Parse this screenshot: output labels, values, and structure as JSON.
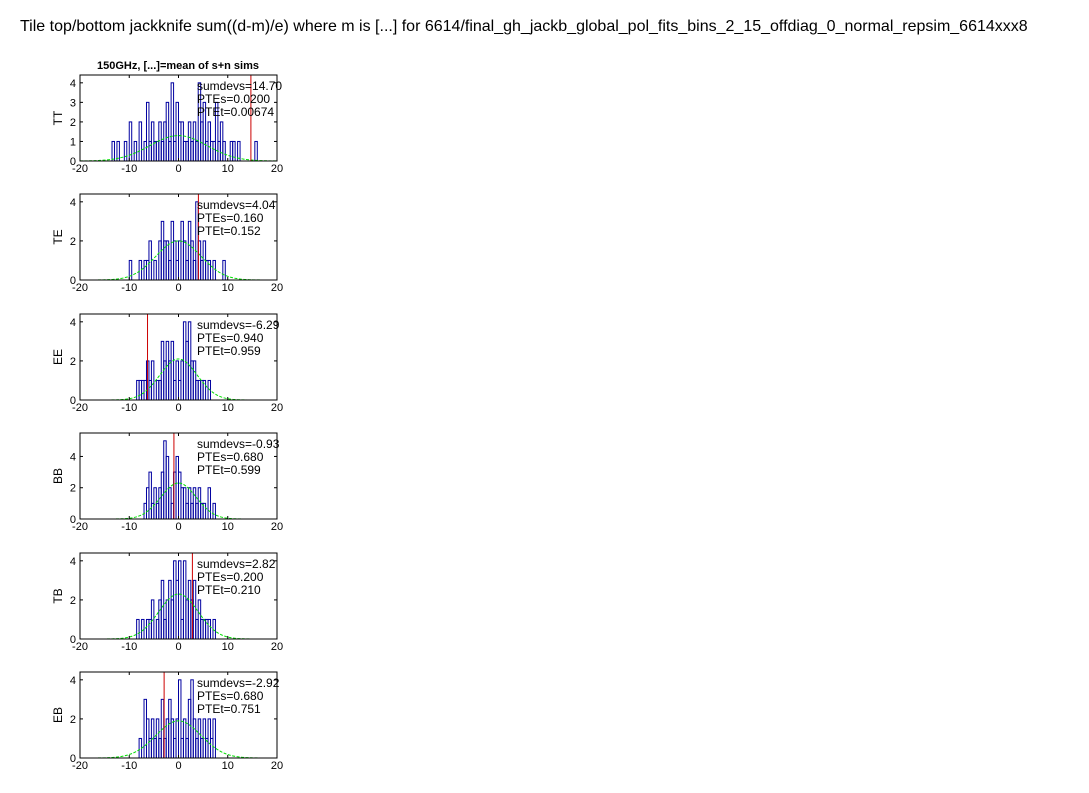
{
  "title": "Tile top/bottom jackknife sum((d-m)/e) where m is [...] for 6614/final_gh_jackb_global_pol_fits_bins_2_15_offdiag_0_normal_repsim_6614xxx8",
  "panel_title": "150GHz, [...]=mean of s+n sims",
  "colors": {
    "hist": "#0000a0",
    "data_line": "#cc0000",
    "gauss": "#00dd00",
    "axes": "#000000"
  },
  "chart_data": [
    {
      "type": "histogram",
      "spectrum": "TT",
      "xlim": [
        -20,
        20
      ],
      "ylim": [
        0,
        4.4
      ],
      "xticks": [
        -20,
        -10,
        0,
        10,
        20
      ],
      "yticks": [
        0,
        1,
        2,
        3,
        4
      ],
      "xticklabels": [
        "-20",
        "-10",
        "0",
        "10",
        "20"
      ],
      "yticklabels": [
        "0",
        "1",
        "2",
        "3",
        "4"
      ],
      "ylabel": "TT",
      "sumdevs": 14.7,
      "data_value": 14.7,
      "stats": [
        "sumdevs=14.70",
        "PTEs=0.0200",
        "PTEt=0.00674"
      ],
      "gauss_sigma": 5.8,
      "gauss_peak": 1.3,
      "bin_width": 0.5,
      "bins": [
        [
          -13.5,
          1
        ],
        [
          -12.5,
          1
        ],
        [
          -11,
          1
        ],
        [
          -10,
          2
        ],
        [
          -9,
          1
        ],
        [
          -8,
          2
        ],
        [
          -7,
          1
        ],
        [
          -6.5,
          3
        ],
        [
          -6,
          1
        ],
        [
          -5.5,
          2
        ],
        [
          -5,
          1
        ],
        [
          -4.5,
          1
        ],
        [
          -4,
          2
        ],
        [
          -3.5,
          1
        ],
        [
          -3,
          2
        ],
        [
          -2.5,
          3
        ],
        [
          -2,
          1
        ],
        [
          -1.5,
          4
        ],
        [
          -1,
          1
        ],
        [
          -0.5,
          3
        ],
        [
          0,
          2
        ],
        [
          0.5,
          2
        ],
        [
          1,
          1
        ],
        [
          1.5,
          1
        ],
        [
          2,
          2
        ],
        [
          2.5,
          1
        ],
        [
          3,
          2
        ],
        [
          3.5,
          1
        ],
        [
          4,
          4
        ],
        [
          4.5,
          2
        ],
        [
          5,
          3
        ],
        [
          5.5,
          1
        ],
        [
          6,
          2
        ],
        [
          6.5,
          1
        ],
        [
          7,
          1
        ],
        [
          7.5,
          3
        ],
        [
          8,
          1
        ],
        [
          8.5,
          2
        ],
        [
          9,
          1
        ],
        [
          10.5,
          1
        ],
        [
          11,
          1
        ],
        [
          12,
          1
        ],
        [
          15.5,
          1
        ]
      ]
    },
    {
      "type": "histogram",
      "spectrum": "TE",
      "xlim": [
        -20,
        20
      ],
      "ylim": [
        0,
        4.4
      ],
      "xticks": [
        -20,
        -10,
        0,
        10,
        20
      ],
      "yticks": [
        0,
        2,
        4
      ],
      "xticklabels": [
        "-20",
        "-10",
        "0",
        "10",
        "20"
      ],
      "yticklabels": [
        "0",
        "2",
        "4"
      ],
      "ylabel": "TE",
      "sumdevs": 4.04,
      "data_value": 4.04,
      "stats": [
        "sumdevs=4.04",
        "PTEs=0.160",
        "PTEt=0.152"
      ],
      "gauss_sigma": 4.6,
      "gauss_peak": 2.0,
      "bin_width": 0.5,
      "bins": [
        [
          -10,
          1
        ],
        [
          -8,
          1
        ],
        [
          -7,
          1
        ],
        [
          -6.5,
          1
        ],
        [
          -6,
          2
        ],
        [
          -5,
          1
        ],
        [
          -4,
          2
        ],
        [
          -3.5,
          3
        ],
        [
          -3,
          2
        ],
        [
          -2.5,
          2
        ],
        [
          -2,
          1
        ],
        [
          -1.5,
          3
        ],
        [
          -1,
          2
        ],
        [
          -0.5,
          1
        ],
        [
          0,
          2
        ],
        [
          0.5,
          3
        ],
        [
          1,
          2
        ],
        [
          1.5,
          1
        ],
        [
          2,
          3
        ],
        [
          2.5,
          2
        ],
        [
          3,
          1
        ],
        [
          3.5,
          4
        ],
        [
          4,
          2
        ],
        [
          4.5,
          1
        ],
        [
          5,
          2
        ],
        [
          5.5,
          1
        ],
        [
          6,
          1
        ],
        [
          7,
          1
        ],
        [
          9,
          1
        ]
      ]
    },
    {
      "type": "histogram",
      "spectrum": "EE",
      "xlim": [
        -20,
        20
      ],
      "ylim": [
        0,
        4.4
      ],
      "xticks": [
        -20,
        -10,
        0,
        10,
        20
      ],
      "yticks": [
        0,
        2,
        4
      ],
      "xticklabels": [
        "-20",
        "-10",
        "0",
        "10",
        "20"
      ],
      "yticklabels": [
        "0",
        "2",
        "4"
      ],
      "ylabel": "EE",
      "sumdevs": -6.29,
      "data_value": -6.29,
      "stats": [
        "sumdevs=-6.29",
        "PTEs=0.940",
        "PTEt=0.959"
      ],
      "gauss_sigma": 3.8,
      "gauss_peak": 2.1,
      "bin_width": 0.5,
      "bins": [
        [
          -8.5,
          1
        ],
        [
          -8,
          1
        ],
        [
          -7.5,
          1
        ],
        [
          -7,
          1
        ],
        [
          -6.5,
          2
        ],
        [
          -6,
          1
        ],
        [
          -5.5,
          2
        ],
        [
          -4.5,
          1
        ],
        [
          -4,
          1
        ],
        [
          -3.5,
          3
        ],
        [
          -3,
          2
        ],
        [
          -2.5,
          3
        ],
        [
          -2,
          2
        ],
        [
          -1.5,
          3
        ],
        [
          -1,
          1
        ],
        [
          -0.5,
          2
        ],
        [
          0,
          1
        ],
        [
          0.5,
          2
        ],
        [
          1,
          4
        ],
        [
          1.5,
          3
        ],
        [
          2,
          4
        ],
        [
          2.5,
          2
        ],
        [
          3,
          2
        ],
        [
          3.5,
          1
        ],
        [
          4,
          1
        ],
        [
          4.5,
          1
        ],
        [
          5,
          1
        ],
        [
          6,
          1
        ]
      ]
    },
    {
      "type": "histogram",
      "spectrum": "BB",
      "xlim": [
        -20,
        20
      ],
      "ylim": [
        0,
        5.5
      ],
      "xticks": [
        -20,
        -10,
        0,
        10,
        20
      ],
      "yticks": [
        0,
        2,
        4
      ],
      "xticklabels": [
        "-20",
        "-10",
        "0",
        "10",
        "20"
      ],
      "yticklabels": [
        "0",
        "2",
        "4"
      ],
      "ylabel": "BB",
      "sumdevs": -0.93,
      "data_value": -0.93,
      "stats": [
        "sumdevs=-0.93",
        "PTEs=0.680",
        "PTEt=0.599"
      ],
      "gauss_sigma": 3.6,
      "gauss_peak": 2.3,
      "bin_width": 0.5,
      "bins": [
        [
          -7,
          1
        ],
        [
          -6.5,
          2
        ],
        [
          -6,
          3
        ],
        [
          -5.5,
          1
        ],
        [
          -5,
          2
        ],
        [
          -4.5,
          1
        ],
        [
          -4,
          2
        ],
        [
          -3.5,
          3
        ],
        [
          -3,
          5
        ],
        [
          -2.5,
          4
        ],
        [
          -2,
          2
        ],
        [
          -1.5,
          1
        ],
        [
          -1,
          3
        ],
        [
          -0.5,
          4
        ],
        [
          0,
          3
        ],
        [
          0.5,
          2
        ],
        [
          1,
          2
        ],
        [
          1.5,
          1
        ],
        [
          2,
          2
        ],
        [
          2.5,
          1
        ],
        [
          3,
          2
        ],
        [
          3.5,
          1
        ],
        [
          4,
          2
        ],
        [
          4.5,
          1
        ],
        [
          5,
          1
        ],
        [
          6,
          2
        ],
        [
          7,
          1
        ]
      ]
    },
    {
      "type": "histogram",
      "spectrum": "TB",
      "xlim": [
        -20,
        20
      ],
      "ylim": [
        0,
        4.4
      ],
      "xticks": [
        -20,
        -10,
        0,
        10,
        20
      ],
      "yticks": [
        0,
        2,
        4
      ],
      "xticklabels": [
        "-20",
        "-10",
        "0",
        "10",
        "20"
      ],
      "yticklabels": [
        "0",
        "2",
        "4"
      ],
      "ylabel": "TB",
      "sumdevs": 2.82,
      "data_value": 2.82,
      "stats": [
        "sumdevs=2.82",
        "PTEs=0.200",
        "PTEt=0.210"
      ],
      "gauss_sigma": 4.0,
      "gauss_peak": 2.3,
      "bin_width": 0.5,
      "bins": [
        [
          -8.5,
          1
        ],
        [
          -7.5,
          1
        ],
        [
          -6.5,
          1
        ],
        [
          -6,
          1
        ],
        [
          -5.5,
          2
        ],
        [
          -4.5,
          1
        ],
        [
          -4,
          2
        ],
        [
          -3.5,
          3
        ],
        [
          -3,
          1
        ],
        [
          -2.5,
          2
        ],
        [
          -2,
          3
        ],
        [
          -1.5,
          2
        ],
        [
          -1,
          4
        ],
        [
          -0.5,
          3
        ],
        [
          0,
          4
        ],
        [
          0.5,
          1
        ],
        [
          1,
          4
        ],
        [
          1.5,
          2
        ],
        [
          2,
          3
        ],
        [
          2.5,
          2
        ],
        [
          3,
          3
        ],
        [
          3.5,
          1
        ],
        [
          4,
          2
        ],
        [
          4.5,
          1
        ],
        [
          5,
          1
        ],
        [
          5.5,
          1
        ],
        [
          6,
          1
        ],
        [
          7,
          1
        ]
      ]
    },
    {
      "type": "histogram",
      "spectrum": "EB",
      "xlim": [
        -20,
        20
      ],
      "ylim": [
        0,
        4.4
      ],
      "xticks": [
        -20,
        -10,
        0,
        10,
        20
      ],
      "yticks": [
        0,
        2,
        4
      ],
      "xticklabels": [
        "-20",
        "-10",
        "0",
        "10",
        "20"
      ],
      "yticklabels": [
        "0",
        "2",
        "4"
      ],
      "ylabel": "EB",
      "sumdevs": -2.92,
      "data_value": -2.92,
      "stats": [
        "sumdevs=-2.92",
        "PTEs=0.680",
        "PTEt=0.751"
      ],
      "gauss_sigma": 4.6,
      "gauss_peak": 1.9,
      "bin_width": 0.5,
      "bins": [
        [
          -8,
          1
        ],
        [
          -7,
          3
        ],
        [
          -6.5,
          2
        ],
        [
          -6,
          1
        ],
        [
          -5.5,
          2
        ],
        [
          -5,
          1
        ],
        [
          -4.5,
          2
        ],
        [
          -4,
          1
        ],
        [
          -3.5,
          3
        ],
        [
          -3,
          1
        ],
        [
          -2.5,
          2
        ],
        [
          -2,
          3
        ],
        [
          -1.5,
          2
        ],
        [
          -1,
          1
        ],
        [
          -0.5,
          2
        ],
        [
          0,
          4
        ],
        [
          0.5,
          1
        ],
        [
          1,
          2
        ],
        [
          1.5,
          1
        ],
        [
          2,
          3
        ],
        [
          2.5,
          4
        ],
        [
          3,
          2
        ],
        [
          3.5,
          1
        ],
        [
          4,
          2
        ],
        [
          4.5,
          1
        ],
        [
          5,
          2
        ],
        [
          5.5,
          1
        ],
        [
          6,
          2
        ],
        [
          6.5,
          1
        ],
        [
          7,
          2
        ]
      ]
    }
  ]
}
